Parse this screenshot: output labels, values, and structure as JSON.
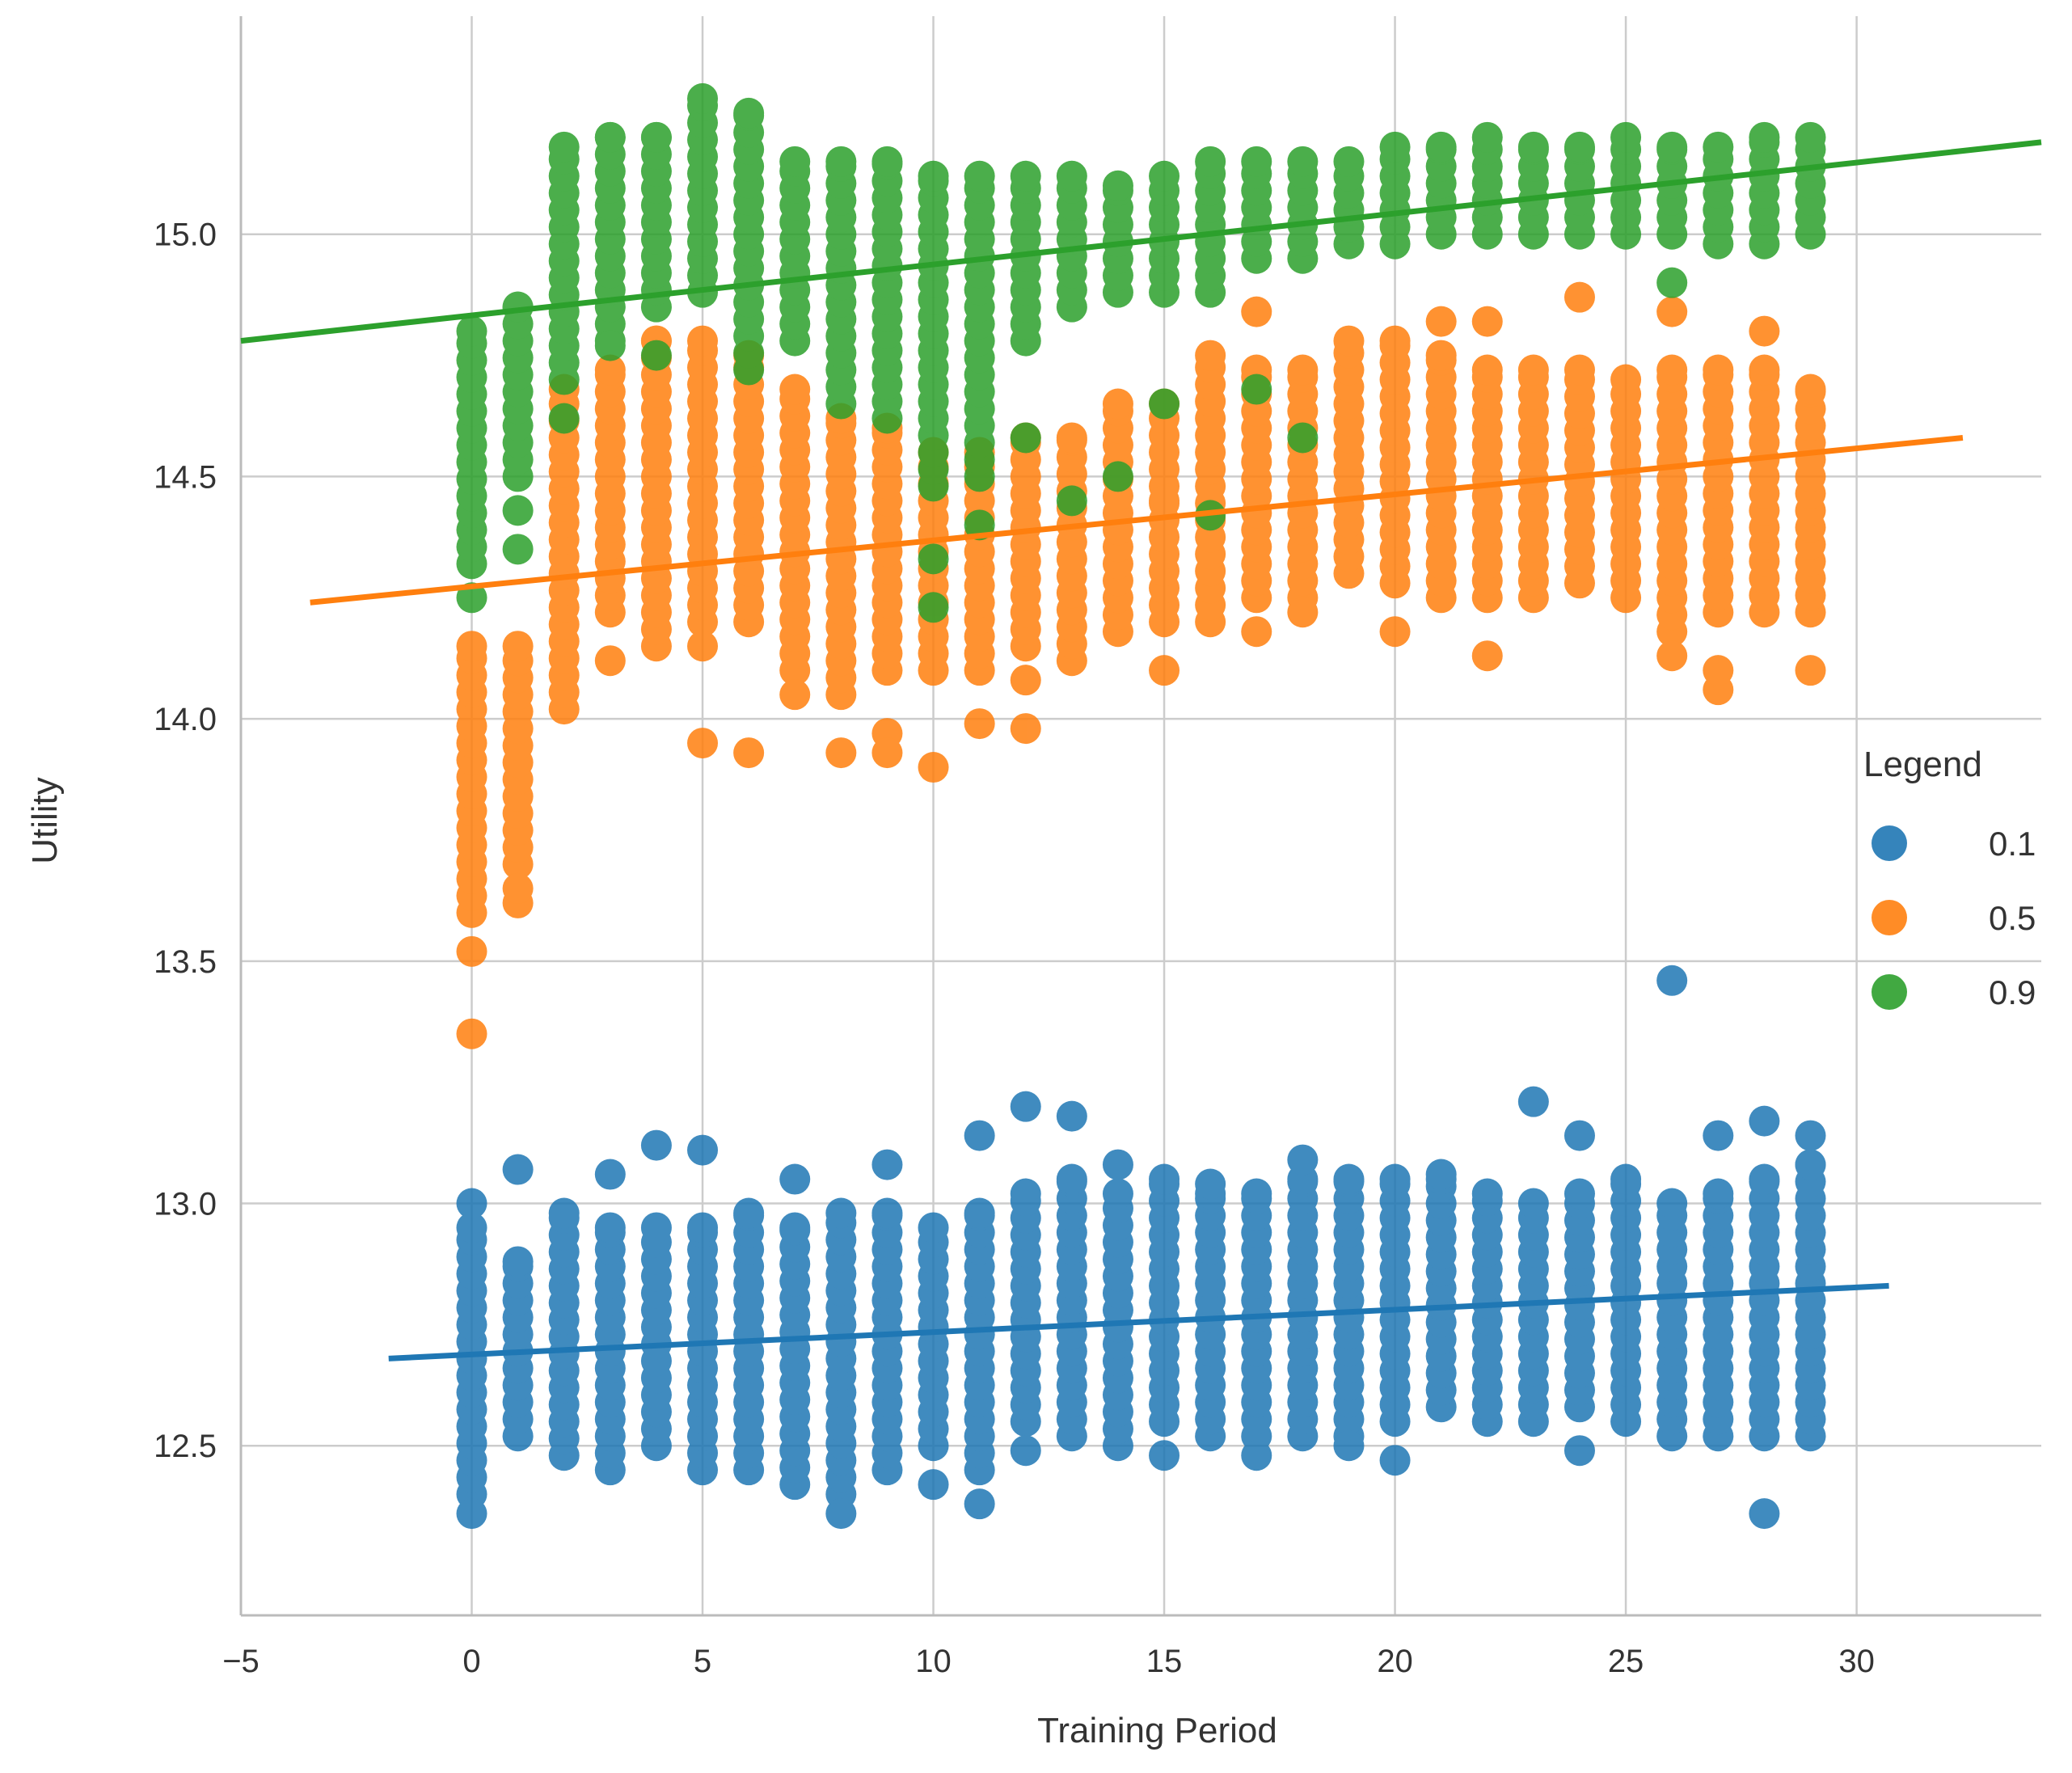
{
  "chart_data": {
    "type": "scatter",
    "title": "",
    "xlabel": "Training Period",
    "ylabel": "Utility",
    "xlim": [
      -5,
      34
    ],
    "ylim": [
      12.15,
      15.45
    ],
    "xticks": [
      -5,
      0,
      5,
      10,
      15,
      20,
      25,
      30
    ],
    "xtick_labels": [
      "−5",
      "0",
      "5",
      "10",
      "15",
      "20",
      "25",
      "30"
    ],
    "yticks": [
      12.5,
      13.0,
      13.5,
      14.0,
      14.5,
      15.0
    ],
    "ytick_labels": [
      "12.5",
      "13.0",
      "13.5",
      "14.0",
      "14.5",
      "15.0"
    ],
    "grid": true,
    "legend": {
      "title": "Legend",
      "position": "right"
    },
    "series": [
      {
        "name": "0.1",
        "color": "#1f77b4",
        "x_values": [
          0,
          1,
          2,
          3,
          4,
          5,
          6,
          7,
          8,
          9,
          10,
          11,
          12,
          13,
          14,
          15,
          16,
          17,
          18,
          19,
          20,
          21,
          22,
          23,
          24,
          25,
          26,
          27,
          28,
          29
        ],
        "y_min": [
          12.4,
          12.52,
          12.48,
          12.45,
          12.5,
          12.45,
          12.45,
          12.42,
          12.4,
          12.45,
          12.5,
          12.45,
          12.55,
          12.52,
          12.5,
          12.55,
          12.52,
          12.52,
          12.52,
          12.52,
          12.55,
          12.58,
          12.55,
          12.55,
          12.58,
          12.55,
          12.52,
          12.52,
          12.52,
          12.52
        ],
        "y_max": [
          12.95,
          12.88,
          12.98,
          12.95,
          12.95,
          12.95,
          12.98,
          12.95,
          12.98,
          12.98,
          12.95,
          12.98,
          13.02,
          13.05,
          13.02,
          13.05,
          13.02,
          13.02,
          13.05,
          13.05,
          13.05,
          13.05,
          13.02,
          13.0,
          13.02,
          13.05,
          13.0,
          13.02,
          13.05,
          13.08
        ],
        "outliers": [
          [
            0,
            12.36
          ],
          [
            0,
            13.0
          ],
          [
            1,
            13.07
          ],
          [
            3,
            13.06
          ],
          [
            4,
            13.12
          ],
          [
            5,
            13.11
          ],
          [
            7,
            13.05
          ],
          [
            8,
            12.36
          ],
          [
            9,
            13.08
          ],
          [
            10,
            12.42
          ],
          [
            11,
            13.14
          ],
          [
            11,
            12.38
          ],
          [
            12,
            13.2
          ],
          [
            12,
            12.49
          ],
          [
            13,
            13.18
          ],
          [
            14,
            13.08
          ],
          [
            15,
            12.48
          ],
          [
            16,
            13.04
          ],
          [
            17,
            12.48
          ],
          [
            18,
            13.09
          ],
          [
            19,
            12.5
          ],
          [
            20,
            12.47
          ],
          [
            21,
            13.06
          ],
          [
            23,
            13.21
          ],
          [
            24,
            13.14
          ],
          [
            24,
            12.49
          ],
          [
            26,
            13.46
          ],
          [
            27,
            13.14
          ],
          [
            28,
            13.17
          ],
          [
            28,
            12.36
          ],
          [
            29,
            13.14
          ]
        ],
        "trend": {
          "x": [
            -1.8,
            30.7
          ],
          "y": [
            12.68,
            12.83
          ]
        }
      },
      {
        "name": "0.5",
        "color": "#ff7f0e",
        "x_values": [
          0,
          1,
          2,
          3,
          4,
          5,
          6,
          7,
          8,
          9,
          10,
          11,
          12,
          13,
          14,
          15,
          16,
          17,
          18,
          19,
          20,
          21,
          22,
          23,
          24,
          25,
          26,
          27,
          28,
          29
        ],
        "y_min": [
          13.6,
          13.7,
          14.02,
          14.22,
          14.15,
          14.2,
          14.2,
          14.1,
          14.05,
          14.1,
          14.1,
          14.1,
          14.15,
          14.12,
          14.18,
          14.2,
          14.2,
          14.25,
          14.25,
          14.3,
          14.28,
          14.25,
          14.25,
          14.25,
          14.28,
          14.25,
          14.18,
          14.22,
          14.22,
          14.22
        ],
        "y_max": [
          14.15,
          14.15,
          14.68,
          14.72,
          14.78,
          14.78,
          14.75,
          14.68,
          14.62,
          14.6,
          14.55,
          14.55,
          14.58,
          14.58,
          14.65,
          14.65,
          14.75,
          14.72,
          14.72,
          14.78,
          14.78,
          14.75,
          14.72,
          14.72,
          14.72,
          14.7,
          14.72,
          14.72,
          14.72,
          14.68
        ],
        "outliers": [
          [
            0,
            13.52
          ],
          [
            0,
            13.35
          ],
          [
            1,
            13.62
          ],
          [
            1,
            13.65
          ],
          [
            3,
            14.12
          ],
          [
            5,
            13.95
          ],
          [
            5,
            14.15
          ],
          [
            6,
            13.93
          ],
          [
            7,
            14.05
          ],
          [
            8,
            13.93
          ],
          [
            9,
            13.97
          ],
          [
            9,
            13.93
          ],
          [
            10,
            13.9
          ],
          [
            11,
            13.99
          ],
          [
            12,
            13.98
          ],
          [
            12,
            14.08
          ],
          [
            15,
            14.1
          ],
          [
            15,
            14.45
          ],
          [
            17,
            14.84
          ],
          [
            17,
            14.18
          ],
          [
            18,
            14.22
          ],
          [
            20,
            14.18
          ],
          [
            21,
            14.82
          ],
          [
            22,
            14.82
          ],
          [
            22,
            14.13
          ],
          [
            24,
            14.87
          ],
          [
            26,
            14.84
          ],
          [
            26,
            14.13
          ],
          [
            27,
            14.06
          ],
          [
            27,
            14.1
          ],
          [
            28,
            14.8
          ],
          [
            29,
            14.1
          ]
        ],
        "trend": {
          "x": [
            -3.5,
            32.3
          ],
          "y": [
            14.24,
            14.58
          ]
        }
      },
      {
        "name": "0.9",
        "color": "#2ca02c",
        "x_values": [
          0,
          1,
          2,
          3,
          4,
          5,
          6,
          7,
          8,
          9,
          10,
          11,
          12,
          13,
          14,
          15,
          16,
          17,
          18,
          19,
          20,
          21,
          22,
          23,
          24,
          25,
          26,
          27,
          28,
          29
        ],
        "y_min": [
          14.32,
          14.5,
          14.7,
          14.78,
          14.85,
          14.88,
          14.72,
          14.78,
          14.65,
          14.62,
          14.48,
          14.5,
          14.78,
          14.85,
          14.88,
          14.88,
          14.88,
          14.95,
          14.95,
          14.98,
          14.98,
          15.0,
          15.0,
          15.0,
          15.0,
          15.0,
          15.0,
          14.98,
          14.98,
          15.0
        ],
        "y_max": [
          14.8,
          14.85,
          15.18,
          15.2,
          15.2,
          15.28,
          15.25,
          15.15,
          15.15,
          15.15,
          15.12,
          15.12,
          15.12,
          15.12,
          15.1,
          15.12,
          15.15,
          15.15,
          15.15,
          15.15,
          15.18,
          15.18,
          15.2,
          15.18,
          15.18,
          15.2,
          15.18,
          15.18,
          15.2,
          15.2
        ],
        "outliers": [
          [
            0,
            14.25
          ],
          [
            1,
            14.35
          ],
          [
            1,
            14.43
          ],
          [
            2,
            14.62
          ],
          [
            3,
            14.77
          ],
          [
            4,
            14.75
          ],
          [
            10,
            14.23
          ],
          [
            10,
            14.33
          ],
          [
            11,
            14.4
          ],
          [
            12,
            14.58
          ],
          [
            13,
            14.45
          ],
          [
            14,
            14.5
          ],
          [
            15,
            14.65
          ],
          [
            16,
            14.42
          ],
          [
            17,
            14.68
          ],
          [
            18,
            14.58
          ],
          [
            26,
            14.9
          ]
        ],
        "trend": {
          "x": [
            -5,
            34
          ],
          "y": [
            14.78,
            15.19
          ]
        }
      }
    ]
  }
}
